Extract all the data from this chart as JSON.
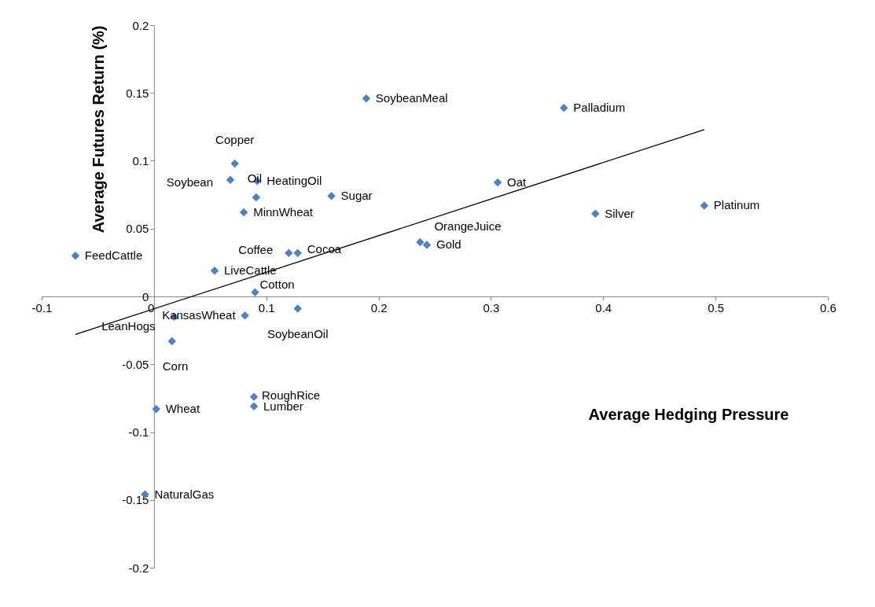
{
  "chart_data": {
    "type": "scatter",
    "xlabel": "Average Hedging Pressure",
    "ylabel": "Average Futures Return (%)",
    "xlim": [
      -0.1,
      0.6
    ],
    "ylim": [
      -0.2,
      0.2
    ],
    "xticks": [
      -0.1,
      0,
      0.1,
      0.2,
      0.3,
      0.4,
      0.5,
      0.6
    ],
    "yticks": [
      -0.2,
      -0.15,
      -0.1,
      -0.05,
      0,
      0.05,
      0.1,
      0.15,
      0.2
    ],
    "grid": false,
    "series": [
      {
        "marker": "diamond",
        "color": "#4f81bd",
        "x": [
          -0.07,
          0.054,
          0.072,
          0.068,
          0.092,
          0.091,
          0.08,
          0.158,
          0.189,
          0.365,
          0.306,
          0.393,
          0.49,
          0.237,
          0.243,
          0.12,
          0.128,
          0.09,
          0.128,
          0.081,
          0.018,
          0.016,
          0.089,
          0.089,
          0.002,
          -0.008
        ],
        "values": [
          0.03,
          0.019,
          0.098,
          0.086,
          0.085,
          0.073,
          0.062,
          0.074,
          0.146,
          0.139,
          0.084,
          0.061,
          0.067,
          0.04,
          0.038,
          0.032,
          0.032,
          0.003,
          -0.009,
          -0.014,
          -0.015,
          -0.033,
          -0.074,
          -0.081,
          -0.083,
          -0.146
        ],
        "value_labels": [
          "FeedCattle",
          "LiveCattle",
          "Copper",
          "Soybean",
          "HeatingOil",
          "Oil",
          "MinnWheat",
          "Sugar",
          "SoybeanMeal",
          "Palladium",
          "Oat",
          "Silver",
          "Platinum",
          "OrangeJuice",
          "Gold",
          "Coffee",
          "Cocoa",
          "Cotton",
          "SoybeanOil",
          "KansasWheat",
          "LeanHogs",
          "Corn",
          "RoughRice",
          "Lumber",
          "Wheat",
          "NaturalGas"
        ]
      },
      {
        "type": "line",
        "color": "#000000",
        "x": [
          -0.07,
          0.49
        ],
        "values": [
          -0.028,
          0.123
        ]
      }
    ]
  }
}
